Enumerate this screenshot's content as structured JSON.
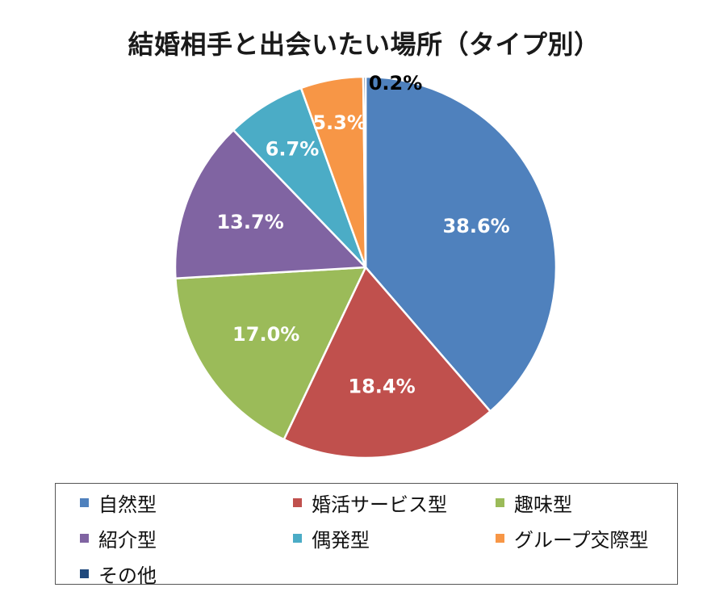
{
  "chart_data": {
    "type": "pie",
    "title": "結婚相手と出会いたい場所（タイプ別）",
    "categories": [
      "自然型",
      "婚活サービス型",
      "趣味型",
      "紹介型",
      "偶発型",
      "グループ交際型",
      "その他"
    ],
    "values": [
      38.6,
      18.4,
      17.0,
      13.7,
      6.7,
      5.3,
      0.2
    ],
    "labels": [
      "38.6%",
      "18.4%",
      "17.0%",
      "13.7%",
      "6.7%",
      "5.3%",
      "0.2%"
    ],
    "colors": [
      "#4F81BD",
      "#C0504D",
      "#9BBB59",
      "#8064A2",
      "#4BACC6",
      "#F79646",
      "#1F497D"
    ],
    "start": "12 o'clock",
    "direction": "clockwise",
    "legend_position": "bottom"
  }
}
